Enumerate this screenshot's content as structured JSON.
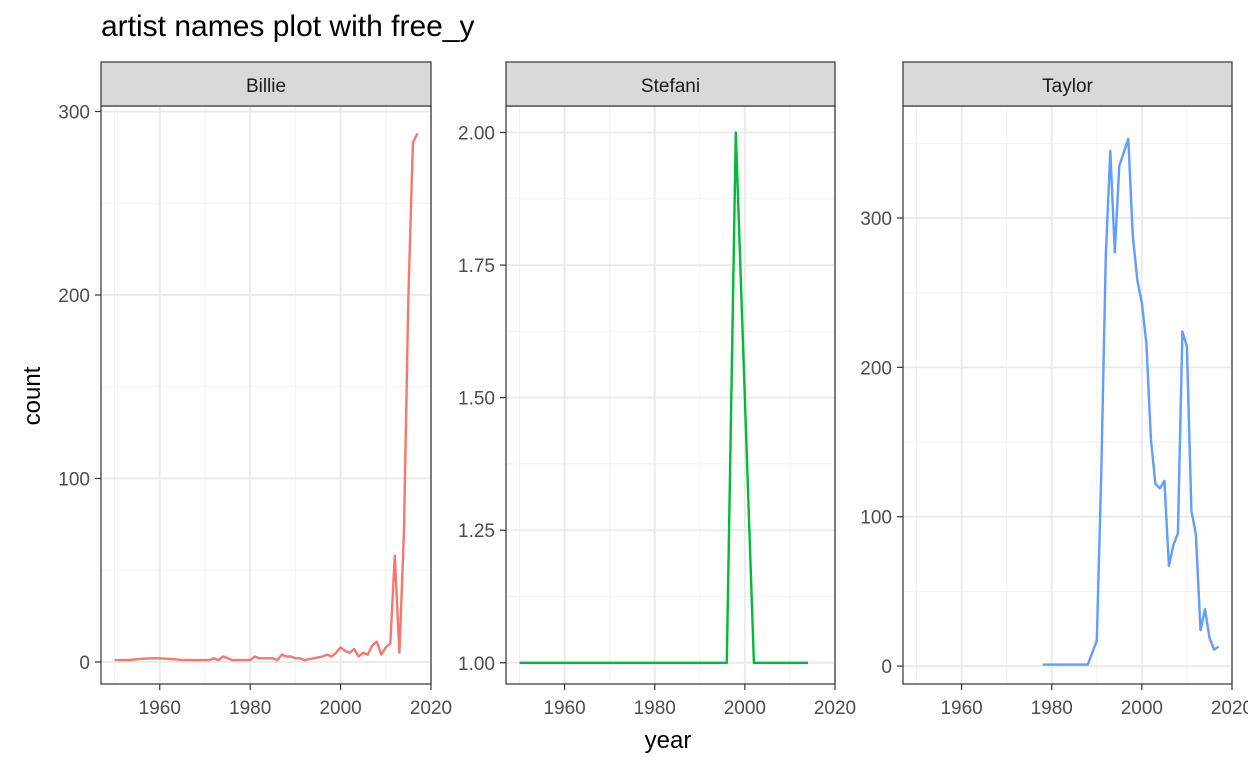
{
  "title": "artist names plot with free_y",
  "chart_data": {
    "type": "line",
    "title": "artist names plot with free_y",
    "xlabel": "year",
    "ylabel": "count",
    "facet_type": "free_y",
    "xlim": [
      1947,
      2020
    ],
    "x_ticks": [
      1960,
      1980,
      2000,
      2020
    ],
    "grid": true,
    "legend": "none",
    "panels": [
      {
        "name": "Billie",
        "color": "#F8766D",
        "ylim": [
          -12,
          303
        ],
        "y_ticks": [
          0,
          100,
          200,
          300
        ],
        "y_tick_labels": [
          "0",
          "100",
          "200",
          "300"
        ],
        "series": {
          "name": "Billie",
          "x": [
            1950,
            1953,
            1955,
            1958,
            1960,
            1963,
            1965,
            1968,
            1970,
            1971,
            1972,
            1973,
            1974,
            1975,
            1976,
            1978,
            1980,
            1981,
            1982,
            1983,
            1985,
            1986,
            1987,
            1988,
            1989,
            1990,
            1991,
            1992,
            1994,
            1996,
            1997,
            1998,
            1999,
            2000,
            2001,
            2002,
            2003,
            2004,
            2005,
            2006,
            2007,
            2008,
            2009,
            2010,
            2011,
            2012,
            2013,
            2014,
            2015,
            2016,
            2017
          ],
          "y": [
            1,
            1,
            1.5,
            2,
            2,
            1.5,
            1,
            1,
            1,
            1,
            2,
            1,
            3,
            2,
            1,
            1,
            1,
            3,
            2,
            2,
            2,
            1,
            4,
            3,
            3,
            2,
            2,
            1,
            2,
            3,
            4,
            3,
            5,
            8,
            6,
            5,
            7,
            3,
            5,
            4,
            9,
            11,
            4,
            8,
            10,
            58,
            5,
            70,
            200,
            283,
            288
          ]
        }
      },
      {
        "name": "Stefani",
        "color": "#00BA38",
        "ylim": [
          0.96,
          2.05
        ],
        "y_ticks": [
          1.0,
          1.25,
          1.5,
          1.75,
          2.0
        ],
        "y_tick_labels": [
          "1.00",
          "1.25",
          "1.50",
          "1.75",
          "2.00"
        ],
        "series": {
          "name": "Stefani",
          "x": [
            1950,
            1996,
            1998,
            2002,
            2014
          ],
          "y": [
            1,
            1,
            2,
            1,
            1
          ]
        }
      },
      {
        "name": "Taylor",
        "color": "#619CFF",
        "ylim": [
          -12,
          375
        ],
        "y_ticks": [
          0,
          100,
          200,
          300
        ],
        "y_tick_labels": [
          "0",
          "100",
          "200",
          "300"
        ],
        "series": {
          "name": "Taylor",
          "x": [
            1978,
            1988,
            1990,
            1991,
            1992,
            1993,
            1994,
            1995,
            1997,
            1998,
            1999,
            2000,
            2001,
            2002,
            2003,
            2004,
            2005,
            2006,
            2007,
            2008,
            2009,
            2010,
            2011,
            2012,
            2013,
            2014,
            2015,
            2016,
            2017
          ],
          "y": [
            1,
            1,
            17,
            130,
            275,
            345,
            277,
            335,
            353,
            288,
            258,
            243,
            216,
            152,
            122,
            119,
            124,
            67,
            81,
            89,
            224,
            214,
            104,
            88,
            24,
            38,
            19,
            11,
            13
          ]
        }
      }
    ]
  }
}
